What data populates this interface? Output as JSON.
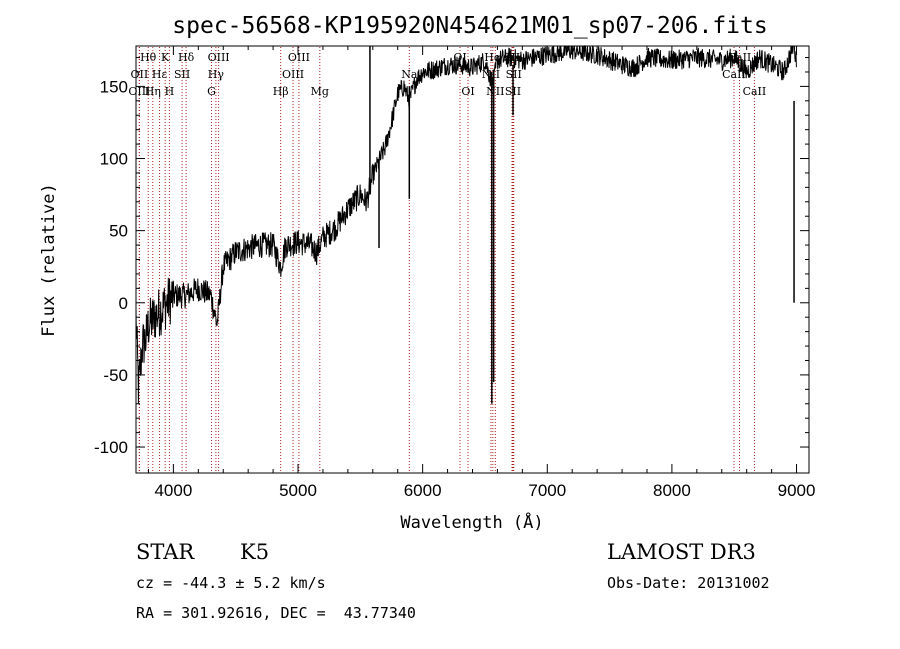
{
  "chart_data": {
    "type": "line",
    "title": "spec-56568-KP195920N454621M01_sp07-206.fits",
    "xlabel": "Wavelength (Å)",
    "ylabel": "Flux (relative)",
    "xlim": [
      3700,
      9100
    ],
    "ylim": [
      -118,
      178
    ],
    "xticks": [
      4000,
      5000,
      6000,
      7000,
      8000,
      9000
    ],
    "yticks": [
      -100,
      -50,
      0,
      50,
      100,
      150
    ],
    "line_color": "#000000",
    "marker_color": "#b22222",
    "series": [
      {
        "name": "flux",
        "anchors": [
          [
            3700,
            -10
          ],
          [
            3720,
            -60
          ],
          [
            3750,
            -30
          ],
          [
            3780,
            -25
          ],
          [
            3800,
            -15
          ],
          [
            3850,
            -10
          ],
          [
            3900,
            -5
          ],
          [
            3950,
            0
          ],
          [
            4000,
            5
          ],
          [
            4100,
            5
          ],
          [
            4200,
            10
          ],
          [
            4300,
            5
          ],
          [
            4350,
            -15
          ],
          [
            4400,
            25
          ],
          [
            4500,
            35
          ],
          [
            4600,
            38
          ],
          [
            4700,
            40
          ],
          [
            4800,
            40
          ],
          [
            4860,
            25
          ],
          [
            4900,
            40
          ],
          [
            5000,
            42
          ],
          [
            5100,
            40
          ],
          [
            5150,
            35
          ],
          [
            5200,
            45
          ],
          [
            5300,
            52
          ],
          [
            5400,
            65
          ],
          [
            5500,
            75
          ],
          [
            5550,
            70
          ],
          [
            5600,
            88
          ],
          [
            5700,
            108
          ],
          [
            5750,
            125
          ],
          [
            5800,
            145
          ],
          [
            5850,
            150
          ],
          [
            5893,
            140
          ],
          [
            5950,
            155
          ],
          [
            6000,
            160
          ],
          [
            6100,
            162
          ],
          [
            6200,
            165
          ],
          [
            6300,
            165
          ],
          [
            6400,
            163
          ],
          [
            6500,
            168
          ],
          [
            6563,
            150
          ],
          [
            6600,
            168
          ],
          [
            6700,
            170
          ],
          [
            6800,
            168
          ],
          [
            7000,
            172
          ],
          [
            7200,
            175
          ],
          [
            7400,
            172
          ],
          [
            7600,
            165
          ],
          [
            7700,
            163
          ],
          [
            7800,
            170
          ],
          [
            8000,
            168
          ],
          [
            8200,
            170
          ],
          [
            8400,
            168
          ],
          [
            8500,
            170
          ],
          [
            8600,
            160
          ],
          [
            8700,
            170
          ],
          [
            8800,
            165
          ],
          [
            8900,
            160
          ],
          [
            8980,
            180
          ],
          [
            9000,
            165
          ]
        ]
      }
    ],
    "features": [
      {
        "x": 5577,
        "from": 178,
        "to": 75
      },
      {
        "x": 5650,
        "from": 100,
        "to": 38
      },
      {
        "x": 5893,
        "from": 150,
        "to": 72
      },
      {
        "x": 6555,
        "from": 160,
        "to": -70
      },
      {
        "x": 6570,
        "from": 160,
        "to": -55
      },
      {
        "x": 6725,
        "from": 165,
        "to": 130
      },
      {
        "x": 8980,
        "from": 140,
        "to": 0
      }
    ],
    "lines": [
      {
        "name": "Hθ",
        "x": 3798,
        "row": 0
      },
      {
        "name": "OII",
        "x": 3727,
        "row": 1
      },
      {
        "name": "OIII",
        "x": 3727,
        "row": 2
      },
      {
        "name": "K",
        "x": 3934,
        "row": 0
      },
      {
        "name": "Hε",
        "x": 3889,
        "row": 1
      },
      {
        "name": "Hη",
        "x": 3835,
        "row": 2
      },
      {
        "name": "Hδ",
        "x": 4102,
        "row": 0
      },
      {
        "name": "SII",
        "x": 4070,
        "row": 1
      },
      {
        "name": "H",
        "x": 3968,
        "row": 2
      },
      {
        "name": "OIII",
        "x": 4363,
        "row": 0
      },
      {
        "name": "Hγ",
        "x": 4341,
        "row": 1
      },
      {
        "name": "G",
        "x": 4306,
        "row": 2
      },
      {
        "name": "OIII",
        "x": 5007,
        "row": 0
      },
      {
        "name": "OIII",
        "x": 4960,
        "row": 1
      },
      {
        "name": "Hβ",
        "x": 4861,
        "row": 2
      },
      {
        "name": "Mg",
        "x": 5175,
        "row": 2
      },
      {
        "name": "Na",
        "x": 5893,
        "row": 1
      },
      {
        "name": "OI",
        "x": 6300,
        "row": 0
      },
      {
        "name": "OI",
        "x": 6364,
        "row": 2
      },
      {
        "name": "Hα",
        "x": 6563,
        "row": 0
      },
      {
        "name": "NII",
        "x": 6548,
        "row": 1
      },
      {
        "name": "NII",
        "x": 6583,
        "row": 2
      },
      {
        "name": "SII",
        "x": 6717,
        "row": 0
      },
      {
        "name": "SII",
        "x": 6731,
        "row": 1
      },
      {
        "name": "SII",
        "x": 6725,
        "row": 2
      },
      {
        "name": "CaII",
        "x": 8542,
        "row": 0
      },
      {
        "name": "CaII",
        "x": 8498,
        "row": 1
      },
      {
        "name": "CaII",
        "x": 8662,
        "row": 2
      }
    ]
  },
  "info": {
    "object_class": "STAR",
    "subclass": "K5",
    "survey": "LAMOST DR3",
    "redshift": "cz = -44.3 ± 5.2 km/s",
    "obs_date": "Obs-Date: 20131002",
    "coords": "RA = 301.92616, DEC =  43.77340"
  }
}
